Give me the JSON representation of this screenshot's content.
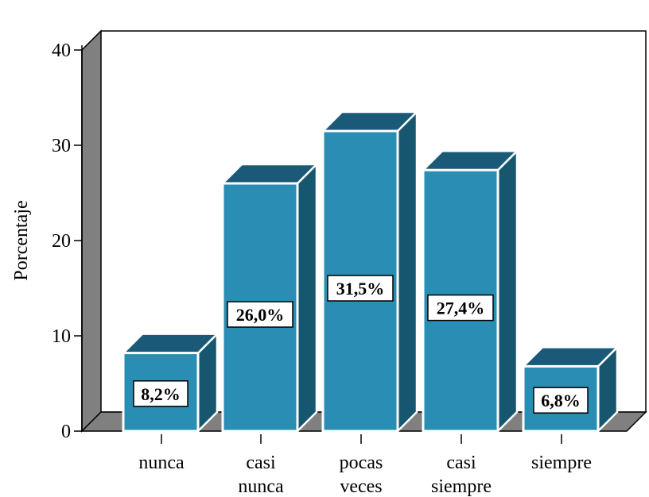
{
  "chart_data": {
    "type": "bar",
    "categories": [
      [
        "nunca"
      ],
      [
        "casi",
        "nunca"
      ],
      [
        "pocas",
        "veces"
      ],
      [
        "casi",
        "siempre"
      ],
      [
        "siempre"
      ]
    ],
    "values": [
      8.2,
      26.0,
      31.5,
      27.4,
      6.8
    ],
    "data_labels": [
      "8,2%",
      "26,0%",
      "31,5%",
      "27,4%",
      "6,8%"
    ],
    "ylabel": "Porcentaje",
    "yticks": [
      "0",
      "10",
      "20",
      "30",
      "40"
    ],
    "ylim": [
      0,
      40
    ],
    "three_d": true,
    "grid": false,
    "colors": {
      "bar_front": "#2a8db3",
      "bar_top": "#1a5a78",
      "bar_side": "#17566f",
      "bar_edge": "#ffffff",
      "wall": "#ffffff",
      "wall_side": "#808080",
      "floor": "#808080"
    }
  }
}
